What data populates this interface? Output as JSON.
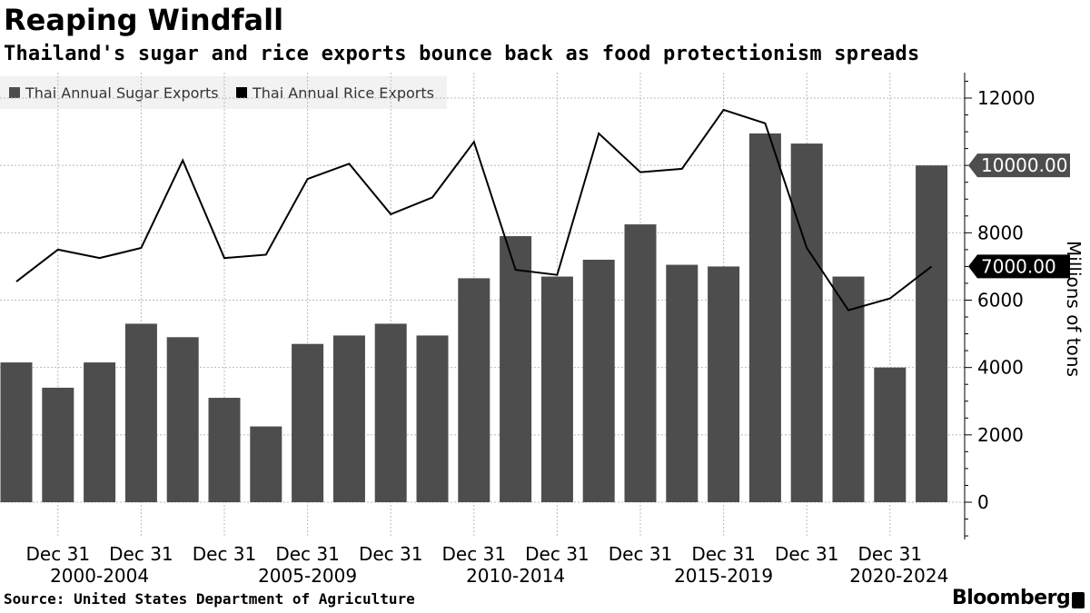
{
  "title": "Reaping Windfall",
  "subtitle": "Thailand's sugar and rice exports bounce back as food protectionism spreads",
  "source": "Source: United States Department of Agriculture",
  "logo": "Bloomberg",
  "colors": {
    "sugar": "#4d4d4d",
    "rice": "#000000",
    "grid": "#bbbbbb",
    "legend_bg": "#f2f2f2"
  },
  "legend": [
    {
      "label": "Thai Annual Sugar Exports",
      "color": "#4d4d4d"
    },
    {
      "label": "Thai Annual Rice Exports",
      "color": "#000000"
    }
  ],
  "chart_data": {
    "type": "bar",
    "title": "Reaping Windfall",
    "subtitle": "Thailand's sugar and rice exports bounce back as food protectionism spreads",
    "ylabel": "Millions of tons",
    "ylim": [
      -1000,
      12600
    ],
    "yticks": [
      0,
      2000,
      4000,
      6000,
      8000,
      10000,
      12000
    ],
    "grid": true,
    "legend_placement": "top-left",
    "x": [
      "2000",
      "2001",
      "2002",
      "2003",
      "2004",
      "2005",
      "2006",
      "2007",
      "2008",
      "2009",
      "2010",
      "2011",
      "2012",
      "2013",
      "2014",
      "2015",
      "2016",
      "2017",
      "2018",
      "2019",
      "2020",
      "2021",
      "2022",
      "2023"
    ],
    "x_tick_labels": [
      "Dec 31",
      "Dec 31",
      "Dec 31",
      "Dec 31",
      "Dec 31",
      "Dec 31",
      "Dec 31",
      "Dec 31",
      "Dec 31",
      "Dec 31",
      "Dec 31"
    ],
    "x_group_labels": [
      "2000-2004",
      "2005-2009",
      "2010-2014",
      "2015-2019",
      "2020-2024"
    ],
    "series": [
      {
        "name": "Thai Annual Sugar Exports",
        "type": "bar",
        "values": [
          4150,
          3400,
          4150,
          5300,
          4900,
          3100,
          2250,
          4700,
          4950,
          5300,
          4950,
          6650,
          7900,
          6700,
          7200,
          8250,
          7050,
          7000,
          10950,
          10650,
          6700,
          4000,
          10000,
          null
        ]
      },
      {
        "name": "Thai Annual Rice Exports",
        "type": "line",
        "values": [
          6550,
          7500,
          7250,
          7550,
          10150,
          7250,
          7350,
          9600,
          10050,
          8550,
          9050,
          10700,
          6900,
          6750,
          10950,
          9800,
          9900,
          11650,
          11250,
          7550,
          5700,
          6050,
          7000,
          null
        ]
      }
    ],
    "annotations": [
      "10000.00",
      "7000.00"
    ]
  }
}
